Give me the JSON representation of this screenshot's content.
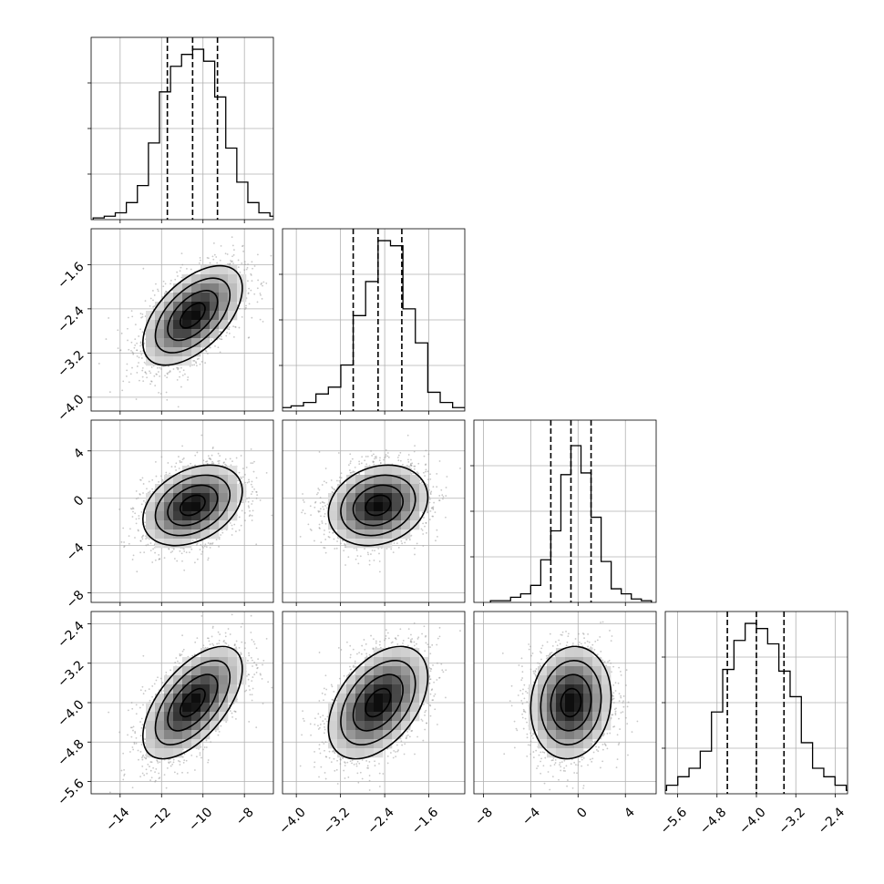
{
  "chart_data": {
    "type": "corner",
    "title": "",
    "parameters": [
      {
        "ticks": [
          -14,
          -12,
          -10,
          -8
        ],
        "tick_labels": [
          "−14",
          "−12",
          "−10",
          "−8"
        ],
        "range": [
          -15.4,
          -6.6
        ],
        "median": -10.5,
        "q16": -11.72,
        "q84": -9.3,
        "sigma": 1.2
      },
      {
        "ticks": [
          -4.0,
          -3.2,
          -2.4,
          -1.6
        ],
        "tick_labels": [
          "−4.0",
          "−3.2",
          "−2.4",
          "−1.6"
        ],
        "range": [
          -4.25,
          -0.95
        ],
        "median": -2.52,
        "q16": -2.97,
        "q84": -2.09,
        "sigma": 0.45
      },
      {
        "ticks": [
          -8,
          -4,
          0,
          4
        ],
        "tick_labels": [
          "−8",
          "−4",
          "0",
          "4"
        ],
        "range": [
          -8.8,
          6.6
        ],
        "median": -0.6,
        "q16": -2.3,
        "q84": 1.1,
        "sigma": 1.7
      },
      {
        "ticks": [
          -5.6,
          -4.8,
          -4.0,
          -3.2,
          -2.4
        ],
        "tick_labels": [
          "−5.6",
          "−4.8",
          "−4.0",
          "−3.2",
          "−2.4"
        ],
        "range": [
          -5.85,
          -2.15
        ],
        "median": -4.0,
        "q16": -4.59,
        "q84": -3.44,
        "sigma": 0.57
      }
    ],
    "diagonal_histograms": [
      [
        0.01,
        0.02,
        0.04,
        0.1,
        0.2,
        0.45,
        0.75,
        0.9,
        0.97,
        1.0,
        0.93,
        0.72,
        0.42,
        0.22,
        0.1,
        0.04,
        0.02,
        0.01
      ],
      [
        0.02,
        0.03,
        0.05,
        0.1,
        0.14,
        0.27,
        0.56,
        0.76,
        1.0,
        0.97,
        0.6,
        0.4,
        0.11,
        0.05,
        0.02,
        0.01
      ],
      [
        0.01,
        0.01,
        0.03,
        0.05,
        0.1,
        0.25,
        0.42,
        0.75,
        0.92,
        0.76,
        0.5,
        0.24,
        0.08,
        0.05,
        0.02,
        0.01
      ],
      [
        0.01,
        0.02,
        0.05,
        0.1,
        0.15,
        0.25,
        0.48,
        0.73,
        0.9,
        1.0,
        0.97,
        0.88,
        0.72,
        0.57,
        0.3,
        0.15,
        0.1,
        0.05,
        0.02,
        0.01
      ]
    ],
    "correlations": [
      [
        1.0,
        0.55,
        0.35,
        0.6
      ],
      [
        0.55,
        1.0,
        0.2,
        0.45
      ],
      [
        0.35,
        0.2,
        1.0,
        0.1
      ],
      [
        0.6,
        0.45,
        0.1,
        1.0
      ]
    ],
    "contour_levels_sigma": [
      0.5,
      1.0,
      1.5,
      2.0
    ],
    "grid": true,
    "quantile_lines": "dashed"
  }
}
